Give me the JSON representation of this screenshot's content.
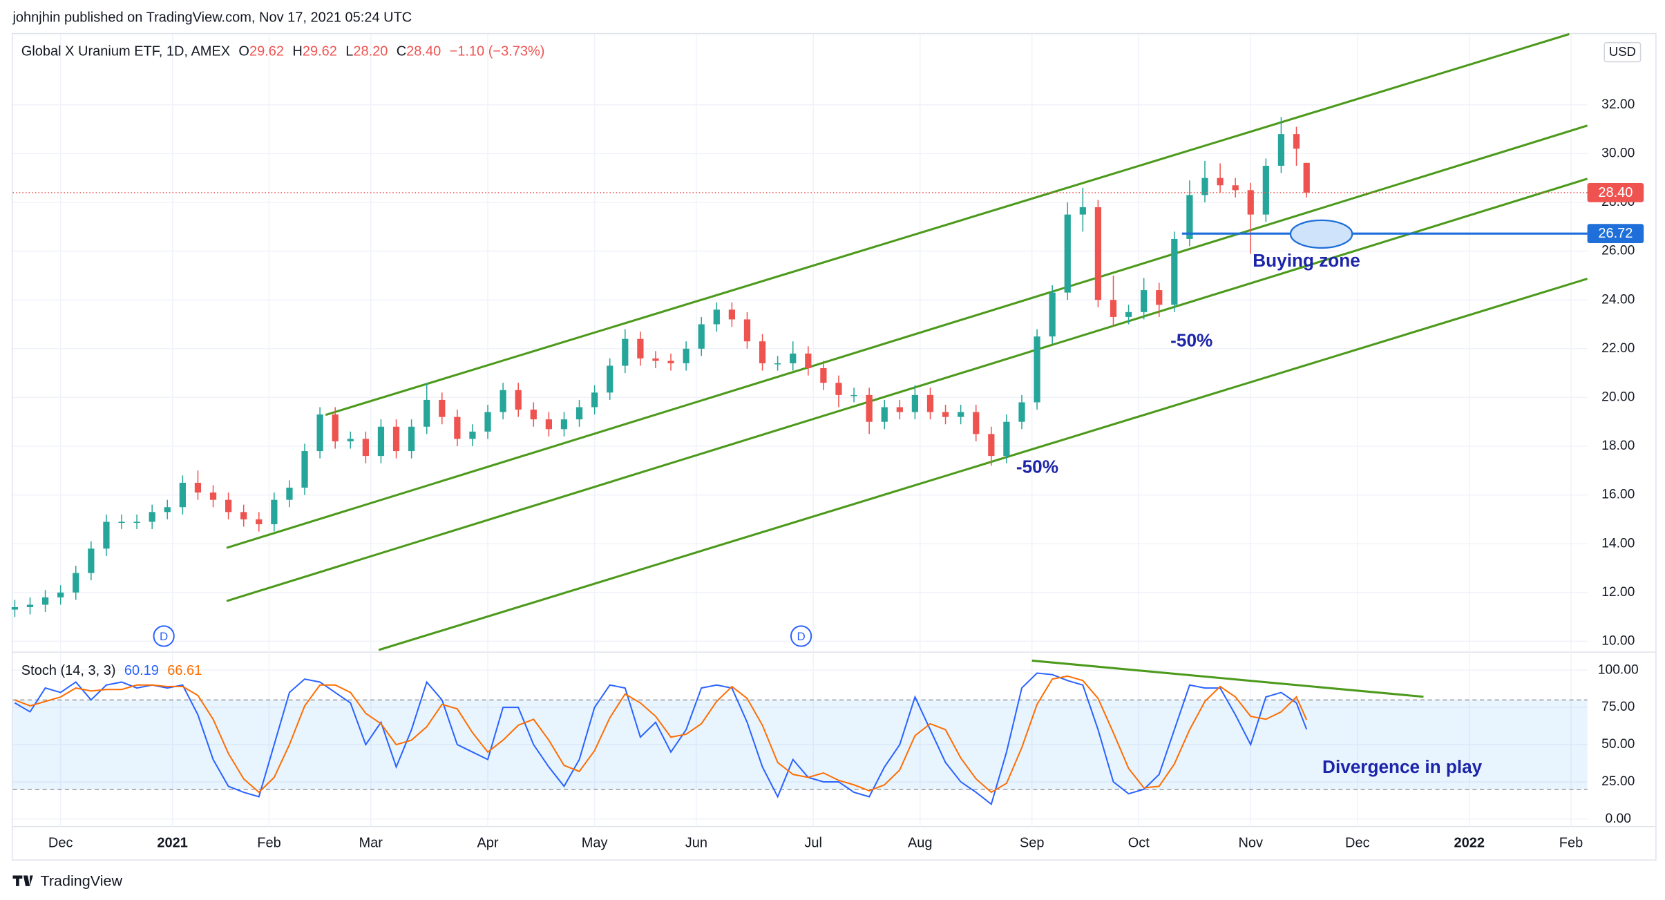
{
  "header": {
    "published": "johnjhin published on TradingView.com, Nov 17, 2021 05:24 UTC"
  },
  "footer": {
    "brand": "TradingView"
  },
  "chart_data": [
    {
      "type": "candlestick",
      "title": "Global X Uranium ETF, 1D, AMEX",
      "ohlc_keys": [
        "O",
        "H",
        "L",
        "C"
      ],
      "ohlc_labels": [
        "29.62",
        "29.62",
        "28.20",
        "28.40"
      ],
      "change": "−1.10 (−3.73%)",
      "currency": "USD",
      "events": [
        "D",
        "D"
      ],
      "annotations": [
        "-50%",
        "-50%",
        "Buying zone"
      ],
      "up_color": "#26a69a",
      "down_color": "#ef5350",
      "x": [
        -9,
        -6,
        -3,
        0,
        3,
        6,
        9,
        12,
        15,
        18,
        21,
        24,
        27,
        30,
        33,
        36,
        39,
        42,
        45,
        48,
        51,
        54,
        57,
        60,
        63,
        66,
        69,
        72,
        75,
        78,
        81,
        84,
        87,
        90,
        93,
        96,
        99,
        102,
        105,
        108,
        111,
        114,
        117,
        120,
        123,
        126,
        129,
        132,
        135,
        138,
        141,
        144,
        147,
        150,
        153,
        156,
        159,
        162,
        165,
        168,
        171,
        174,
        177,
        180,
        183,
        186,
        189,
        192,
        195,
        198,
        201,
        204,
        207,
        210,
        213,
        216,
        219,
        222,
        225,
        228,
        231,
        234,
        237,
        240,
        243,
        245
      ],
      "open": [
        11.3,
        11.4,
        11.5,
        11.8,
        12.0,
        12.8,
        13.8,
        14.9,
        14.9,
        14.9,
        15.3,
        15.5,
        16.5,
        16.1,
        15.8,
        15.3,
        15.0,
        14.8,
        15.8,
        16.3,
        17.8,
        19.3,
        18.2,
        18.3,
        17.6,
        18.8,
        17.8,
        18.8,
        19.9,
        19.2,
        18.3,
        18.6,
        19.4,
        20.3,
        19.5,
        19.1,
        18.7,
        19.1,
        19.6,
        20.2,
        21.3,
        22.4,
        21.6,
        21.5,
        21.4,
        22.0,
        23.0,
        23.6,
        23.2,
        22.3,
        21.4,
        21.4,
        21.8,
        21.2,
        20.6,
        20.1,
        20.1,
        19.0,
        19.6,
        19.4,
        20.1,
        19.4,
        19.2,
        19.4,
        18.5,
        17.6,
        19.0,
        19.8,
        22.5,
        24.3,
        27.5,
        27.8,
        24.0,
        23.3,
        23.5,
        24.4,
        23.8,
        26.5,
        28.3,
        29.0,
        28.7,
        28.5,
        27.5,
        29.5,
        30.8,
        29.62
      ],
      "high": [
        11.7,
        11.8,
        12.1,
        12.3,
        13.1,
        14.1,
        15.2,
        15.2,
        15.2,
        15.6,
        15.8,
        16.8,
        17.0,
        16.4,
        16.1,
        15.6,
        15.3,
        16.1,
        16.6,
        18.1,
        19.6,
        19.6,
        18.6,
        18.6,
        19.1,
        19.1,
        19.1,
        20.6,
        20.2,
        19.5,
        18.9,
        19.7,
        20.6,
        20.6,
        19.8,
        19.4,
        19.4,
        19.9,
        20.5,
        21.6,
        22.8,
        22.7,
        21.9,
        21.8,
        22.3,
        23.3,
        23.9,
        23.9,
        23.5,
        22.6,
        21.7,
        22.3,
        22.1,
        21.5,
        20.9,
        20.4,
        20.4,
        19.9,
        19.9,
        20.5,
        20.4,
        19.7,
        19.7,
        19.7,
        18.8,
        19.3,
        20.1,
        22.8,
        24.6,
        28.0,
        28.6,
        28.1,
        25.0,
        23.8,
        24.9,
        24.7,
        26.8,
        28.9,
        29.7,
        29.6,
        29.0,
        28.8,
        29.8,
        31.5,
        31.1,
        29.62
      ],
      "low": [
        11.0,
        11.1,
        11.2,
        11.5,
        11.7,
        12.5,
        13.5,
        14.6,
        14.6,
        14.6,
        15.0,
        15.2,
        15.8,
        15.5,
        15.0,
        14.7,
        14.5,
        14.5,
        15.5,
        16.0,
        17.5,
        17.9,
        17.9,
        17.3,
        17.3,
        17.5,
        17.5,
        18.5,
        18.9,
        18.0,
        18.0,
        18.3,
        19.1,
        19.2,
        18.8,
        18.4,
        18.4,
        18.8,
        19.3,
        19.9,
        21.0,
        21.3,
        21.2,
        21.1,
        21.1,
        21.7,
        22.7,
        22.9,
        22.0,
        21.1,
        21.1,
        21.1,
        20.9,
        20.3,
        19.6,
        19.8,
        18.5,
        18.7,
        19.1,
        19.1,
        19.1,
        18.9,
        18.9,
        18.2,
        17.2,
        17.3,
        18.7,
        19.5,
        22.2,
        24.0,
        26.8,
        23.7,
        22.9,
        23.0,
        23.2,
        23.3,
        23.5,
        26.2,
        28.0,
        28.4,
        28.2,
        25.9,
        27.2,
        29.2,
        29.5,
        28.2
      ],
      "close": [
        11.4,
        11.5,
        11.8,
        12.0,
        12.8,
        13.8,
        14.9,
        14.9,
        14.9,
        15.3,
        15.5,
        16.5,
        16.1,
        15.8,
        15.3,
        15.0,
        14.8,
        15.8,
        16.3,
        17.8,
        19.3,
        18.2,
        18.3,
        17.6,
        18.8,
        17.8,
        18.8,
        19.9,
        19.2,
        18.3,
        18.6,
        19.4,
        20.3,
        19.5,
        19.1,
        18.7,
        19.1,
        19.6,
        20.2,
        21.3,
        22.4,
        21.6,
        21.5,
        21.4,
        22.0,
        23.0,
        23.6,
        23.2,
        22.3,
        21.4,
        21.4,
        21.8,
        21.2,
        20.6,
        20.1,
        20.1,
        19.0,
        19.6,
        19.4,
        20.1,
        19.4,
        19.2,
        19.4,
        18.5,
        17.6,
        19.0,
        19.8,
        22.5,
        24.3,
        27.5,
        27.8,
        24.0,
        23.3,
        23.5,
        24.4,
        23.8,
        26.5,
        28.3,
        29.0,
        28.7,
        28.5,
        27.5,
        29.5,
        30.8,
        30.2,
        28.4
      ],
      "xlim": [
        -9.4,
        300.2
      ],
      "xticks": [
        {
          "value": 0,
          "label": "Dec"
        },
        {
          "value": 22,
          "label": "2021"
        },
        {
          "value": 41,
          "label": "Feb"
        },
        {
          "value": 61,
          "label": "Mar"
        },
        {
          "value": 84,
          "label": "Apr"
        },
        {
          "value": 105,
          "label": "May"
        },
        {
          "value": 125,
          "label": "Jun"
        },
        {
          "value": 148,
          "label": "Jul"
        },
        {
          "value": 169,
          "label": "Aug"
        },
        {
          "value": 191,
          "label": "Sep"
        },
        {
          "value": 212,
          "label": "Oct"
        },
        {
          "value": 234,
          "label": "Nov"
        },
        {
          "value": 255,
          "label": "Dec"
        },
        {
          "value": 277,
          "label": "2022"
        },
        {
          "value": 297,
          "label": "Feb"
        }
      ],
      "ylim": [
        9.6,
        34.9
      ],
      "yticks": [
        {
          "value": 10,
          "label": "10.00"
        },
        {
          "value": 12,
          "label": "12.00"
        },
        {
          "value": 14,
          "label": "14.00"
        },
        {
          "value": 16,
          "label": "16.00"
        },
        {
          "value": 18,
          "label": "18.00"
        },
        {
          "value": 20,
          "label": "20.00"
        },
        {
          "value": 22,
          "label": "22.00"
        },
        {
          "value": 24,
          "label": "24.00"
        },
        {
          "value": 26,
          "label": "26.00"
        },
        {
          "value": 28,
          "label": "28.00"
        },
        {
          "value": 30,
          "label": "30.00"
        },
        {
          "value": 32,
          "label": "32.00"
        }
      ],
      "grid": true,
      "price_lines": [
        {
          "value": 28.4,
          "label": "28.40",
          "color": "#ef5350",
          "style": "dotted"
        },
        {
          "value": 26.72,
          "label": "26.72",
          "color": "#1e6fd9",
          "style": "solid"
        }
      ]
    },
    {
      "type": "line",
      "title": "Stoch (14, 3, 3)",
      "annotations": [
        "Divergence in play"
      ],
      "x": [
        -9,
        -6,
        -3,
        0,
        3,
        6,
        9,
        12,
        15,
        18,
        21,
        24,
        27,
        30,
        33,
        36,
        39,
        42,
        45,
        48,
        51,
        54,
        57,
        60,
        63,
        66,
        69,
        72,
        75,
        78,
        81,
        84,
        87,
        90,
        93,
        96,
        99,
        102,
        105,
        108,
        111,
        114,
        117,
        120,
        123,
        126,
        129,
        132,
        135,
        138,
        141,
        144,
        147,
        150,
        153,
        156,
        159,
        162,
        165,
        168,
        171,
        174,
        177,
        180,
        183,
        186,
        189,
        192,
        195,
        198,
        201,
        204,
        207,
        210,
        213,
        216,
        219,
        222,
        225,
        228,
        231,
        234,
        237,
        240,
        243,
        245
      ],
      "series": [
        {
          "color": "#2962ff",
          "values": [
            78,
            72,
            88,
            85,
            92,
            80,
            90,
            92,
            88,
            90,
            88,
            90,
            70,
            40,
            22,
            18,
            15,
            50,
            85,
            94,
            92,
            85,
            78,
            50,
            65,
            35,
            60,
            92,
            80,
            50,
            45,
            40,
            75,
            75,
            50,
            35,
            22,
            40,
            75,
            90,
            88,
            55,
            65,
            45,
            60,
            88,
            90,
            88,
            65,
            35,
            15,
            40,
            28,
            25,
            25,
            18,
            15,
            35,
            50,
            82,
            60,
            38,
            25,
            18,
            10,
            45,
            88,
            98,
            97,
            93,
            90,
            60,
            25,
            17,
            20,
            30,
            60,
            90,
            88,
            88,
            70,
            50,
            82,
            85,
            78,
            60.19
          ]
        },
        {
          "color": "#ff6d00",
          "values": [
            80,
            76,
            79,
            82,
            88,
            86,
            87,
            87,
            90,
            90,
            89,
            89,
            83,
            67,
            44,
            27,
            18,
            28,
            50,
            76,
            90,
            90,
            85,
            71,
            64,
            50,
            53,
            62,
            77,
            74,
            58,
            45,
            53,
            63,
            67,
            53,
            36,
            32,
            46,
            68,
            84,
            78,
            69,
            55,
            57,
            64,
            79,
            89,
            81,
            63,
            38,
            30,
            28,
            31,
            26,
            23,
            19,
            23,
            33,
            56,
            64,
            60,
            41,
            27,
            18,
            24,
            48,
            77,
            94,
            96,
            93,
            81,
            58,
            34,
            21,
            22,
            37,
            60,
            79,
            89,
            82,
            69,
            67,
            72,
            82,
            66.61
          ]
        }
      ],
      "xlim": [
        -9.4,
        300.2
      ],
      "ylim": [
        -5,
        111.4
      ],
      "yticks": [
        {
          "value": 0,
          "label": "0.00"
        },
        {
          "value": 25,
          "label": "25.00"
        },
        {
          "value": 50,
          "label": "50.00"
        },
        {
          "value": 75,
          "label": "75.00"
        },
        {
          "value": 100,
          "label": "100.00"
        }
      ],
      "bands": [
        20,
        80
      ],
      "band_color": "#2196f3"
    }
  ]
}
